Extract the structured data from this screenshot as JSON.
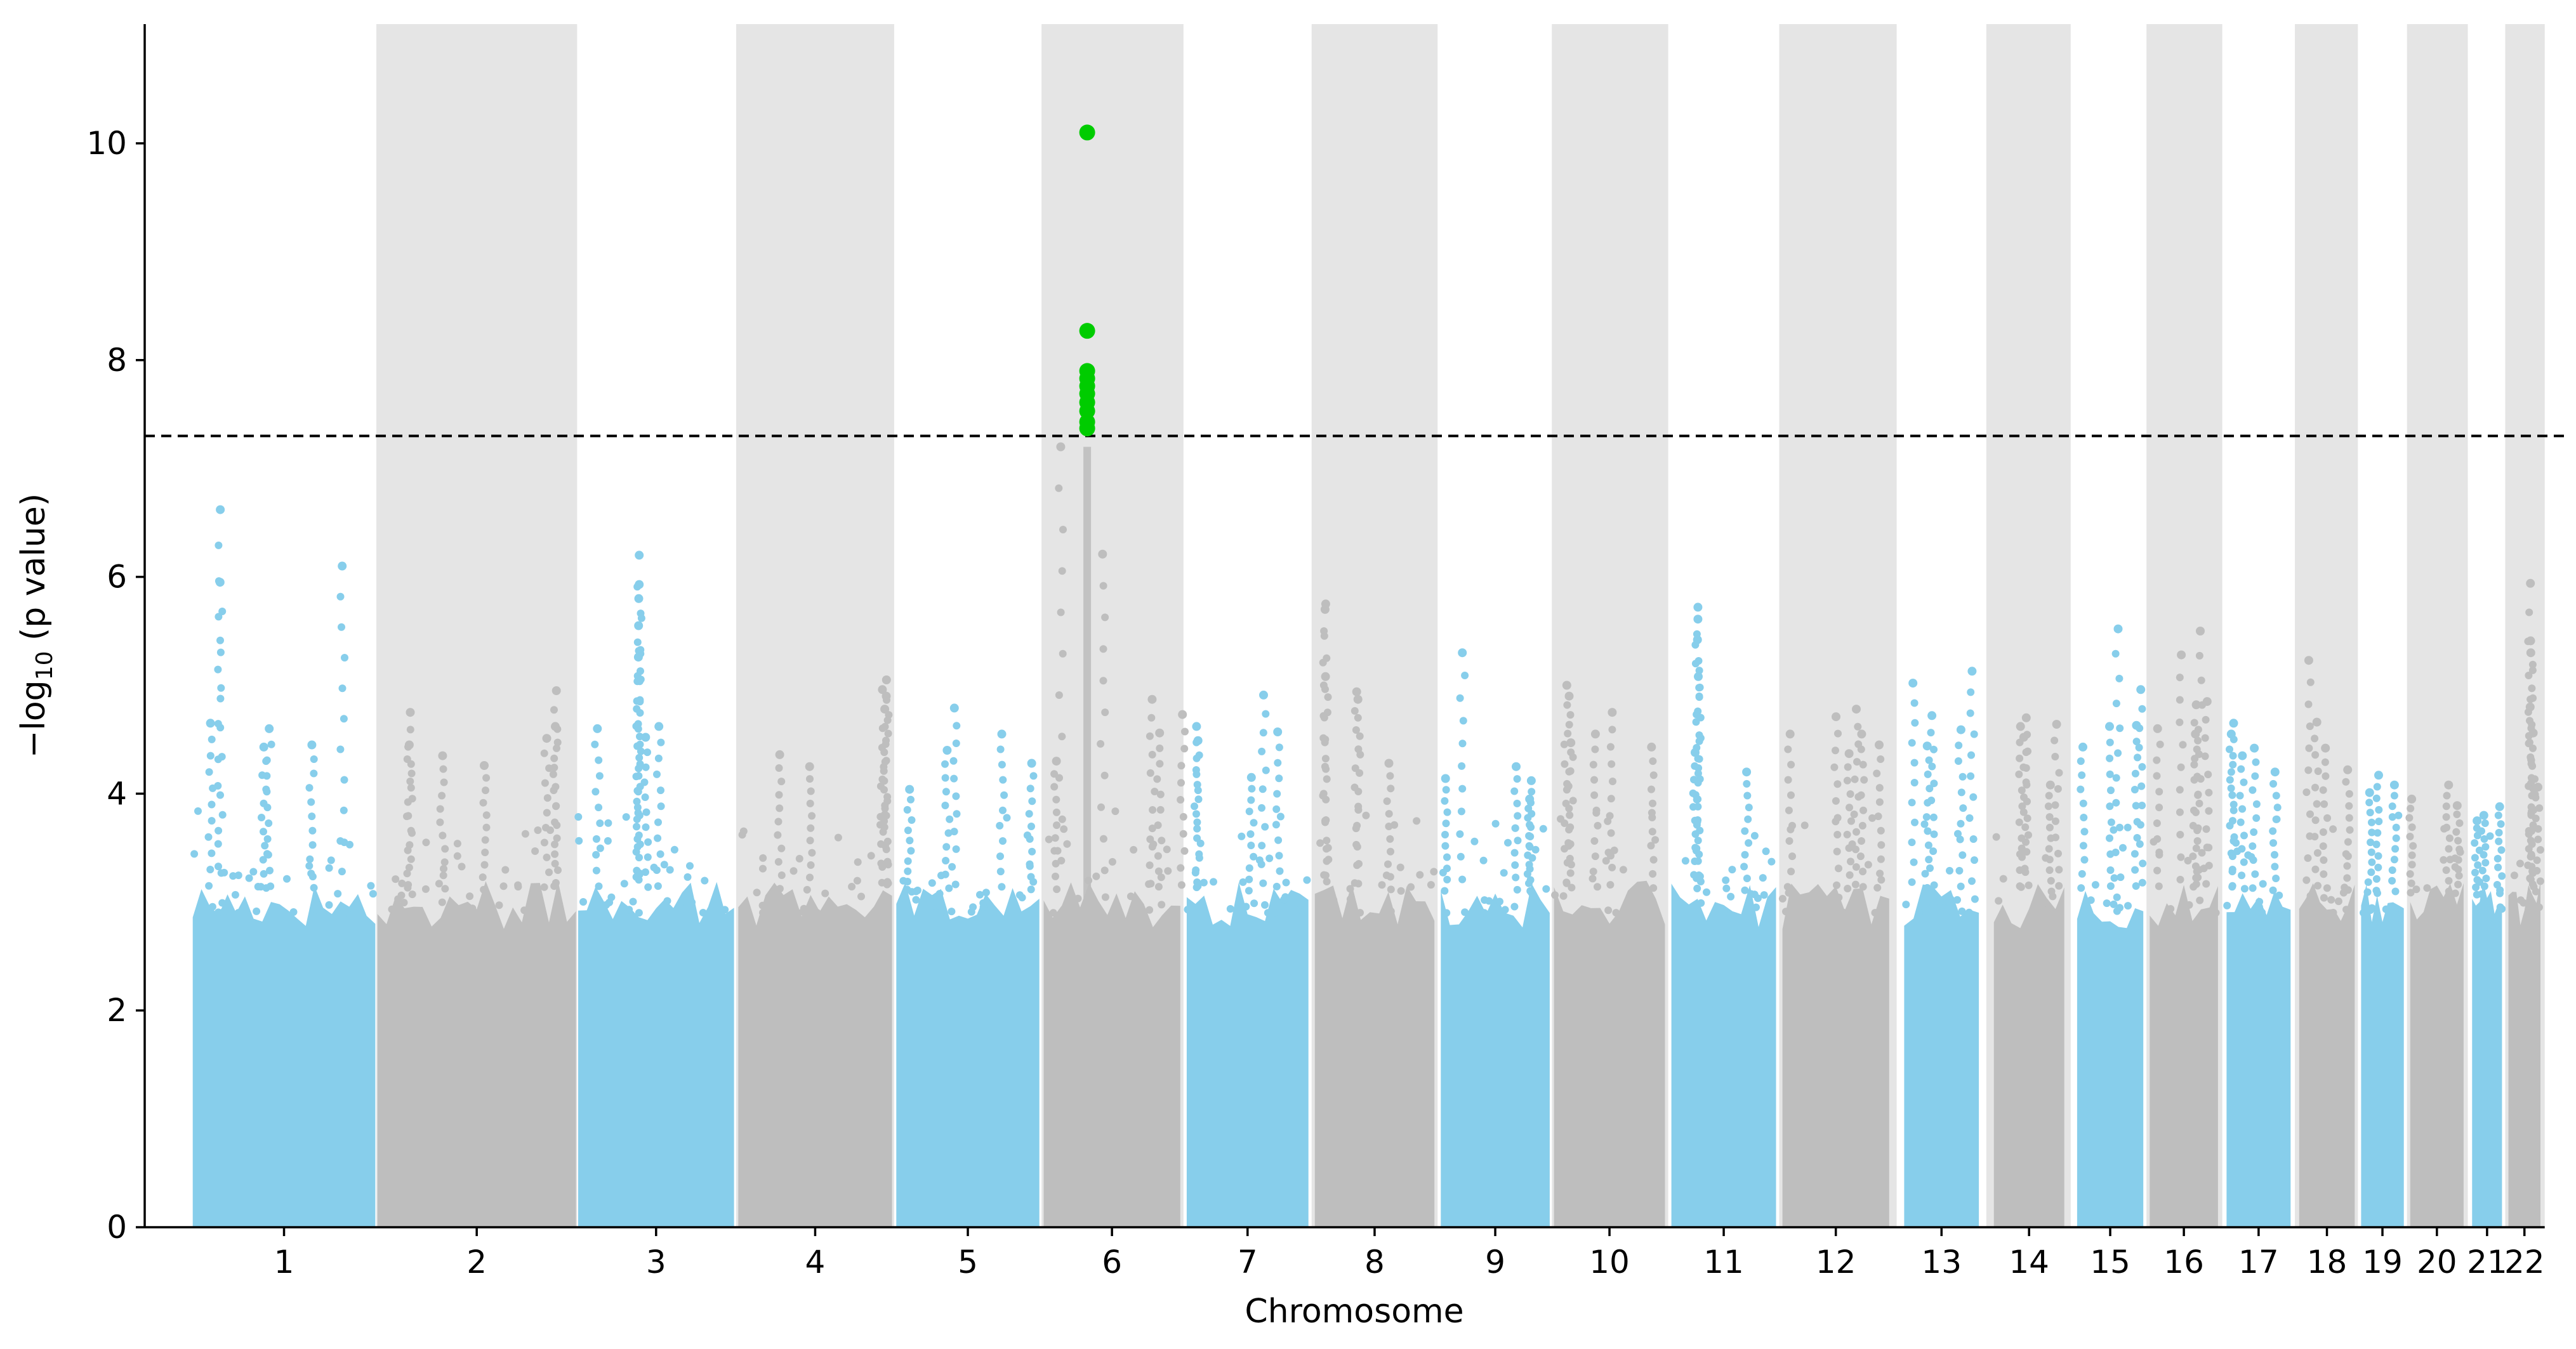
{
  "chart_data": {
    "type": "scatter",
    "subtype": "manhattan",
    "title": "",
    "xlabel": "Chromosome",
    "ylabel_prefix": "−log",
    "ylabel_sub": "10",
    "ylabel_suffix": " (p value)",
    "ylim": [
      0,
      11.1
    ],
    "yticks": [
      0,
      2,
      4,
      6,
      8,
      10
    ],
    "significance_threshold": 7.3,
    "threshold_style": "dashed black line",
    "colors": {
      "odd": "#87ceeb",
      "even": "#bebebe",
      "significant": "#00cc00",
      "band": "#e5e5e5",
      "threshold": "#000000"
    },
    "chromosomes": [
      {
        "label": "1",
        "start": 0.5,
        "end": 86.0,
        "max": 6.62,
        "peaks": [
          [
            13.4,
            6.62
          ],
          [
            13.3,
            5.95
          ],
          [
            70.5,
            6.1
          ],
          [
            8.8,
            4.65
          ],
          [
            36.3,
            4.6
          ],
          [
            56.3,
            4.45
          ],
          [
            33.8,
            4.43
          ]
        ]
      },
      {
        "label": "2",
        "start": 87.0,
        "end": 180.0,
        "max": 4.95,
        "peaks": [
          [
            170.8,
            4.95
          ],
          [
            102.4,
            4.75
          ],
          [
            170.3,
            4.62
          ],
          [
            166.3,
            4.51
          ],
          [
            101.9,
            4.45
          ],
          [
            117.5,
            4.35
          ],
          [
            137.0,
            4.26
          ]
        ]
      },
      {
        "label": "3",
        "start": 181.0,
        "end": 254.0,
        "max": 6.2,
        "peaks": [
          [
            209.6,
            6.2
          ],
          [
            209.6,
            5.93
          ],
          [
            209.4,
            5.8
          ],
          [
            209.3,
            5.55
          ],
          [
            209.2,
            5.26
          ],
          [
            190.0,
            4.6
          ],
          [
            218.8,
            4.62
          ],
          [
            212.6,
            4.52
          ]
        ]
      },
      {
        "label": "4",
        "start": 256.0,
        "end": 328.0,
        "max": 5.05,
        "peaks": [
          [
            325.4,
            5.05
          ],
          [
            323.5,
            4.96
          ],
          [
            325.3,
            4.9
          ],
          [
            324.6,
            4.78
          ],
          [
            275.4,
            4.36
          ],
          [
            289.4,
            4.25
          ]
        ]
      },
      {
        "label": "5",
        "start": 330.0,
        "end": 397.0,
        "max": 4.79,
        "peaks": [
          [
            357.2,
            4.79
          ],
          [
            379.4,
            4.55
          ],
          [
            353.8,
            4.4
          ],
          [
            393.4,
            4.28
          ],
          [
            336.2,
            4.04
          ]
        ]
      },
      {
        "label": "6",
        "start": 399.0,
        "end": 463.0,
        "max": 10.1,
        "peaks": [
          [
            407.0,
            7.2
          ],
          [
            426.6,
            6.21
          ],
          [
            449.8,
            4.87
          ],
          [
            464.0,
            4.73
          ],
          [
            453.3,
            4.56
          ],
          [
            405.0,
            4.3
          ]
        ]
      },
      {
        "label": "7",
        "start": 466.0,
        "end": 523.0,
        "max": 4.91,
        "peaks": [
          [
            502.0,
            4.91
          ],
          [
            470.6,
            4.62
          ],
          [
            508.6,
            4.57
          ],
          [
            471.3,
            4.49
          ],
          [
            496.3,
            4.15
          ]
        ]
      },
      {
        "label": "8",
        "start": 526.0,
        "end": 582.0,
        "max": 5.75,
        "peaks": [
          [
            531.1,
            5.75
          ],
          [
            530.8,
            5.7
          ],
          [
            531.0,
            5.08
          ],
          [
            545.6,
            4.94
          ],
          [
            546.2,
            4.87
          ],
          [
            560.7,
            4.28
          ]
        ]
      },
      {
        "label": "9",
        "start": 585.0,
        "end": 636.0,
        "max": 5.3,
        "peaks": [
          [
            595.1,
            5.3
          ],
          [
            620.3,
            4.25
          ],
          [
            627.4,
            4.12
          ],
          [
            587.2,
            4.14
          ],
          [
            626.6,
            3.95
          ]
        ]
      },
      {
        "label": "10",
        "start": 638.0,
        "end": 690.0,
        "max": 5.0,
        "peaks": [
          [
            644.0,
            5.0
          ],
          [
            645.1,
            4.9
          ],
          [
            665.3,
            4.75
          ],
          [
            657.4,
            4.55
          ],
          [
            645.9,
            4.47
          ],
          [
            683.7,
            4.43
          ]
        ]
      },
      {
        "label": "11",
        "start": 693.0,
        "end": 742.0,
        "max": 5.72,
        "peaks": [
          [
            705.4,
            5.72
          ],
          [
            705.4,
            5.61
          ],
          [
            705.2,
            5.42
          ],
          [
            705.6,
            5.08
          ],
          [
            704.1,
            4.38
          ],
          [
            728.2,
            4.2
          ]
        ]
      },
      {
        "label": "12",
        "start": 745.0,
        "end": 795.0,
        "max": 4.78,
        "peaks": [
          [
            779.6,
            4.78
          ],
          [
            770.1,
            4.71
          ],
          [
            782.1,
            4.55
          ],
          [
            748.6,
            4.55
          ],
          [
            776.2,
            4.37
          ],
          [
            790.3,
            4.45
          ]
        ]
      },
      {
        "label": "13",
        "start": 802.0,
        "end": 837.0,
        "max": 5.13,
        "peaks": [
          [
            806.1,
            5.02
          ],
          [
            833.8,
            5.13
          ],
          [
            815.0,
            4.72
          ],
          [
            828.6,
            4.59
          ],
          [
            812.8,
            4.44
          ]
        ]
      },
      {
        "label": "14",
        "start": 844.0,
        "end": 877.0,
        "max": 4.7,
        "peaks": [
          [
            859.2,
            4.7
          ],
          [
            856.5,
            4.62
          ],
          [
            873.4,
            4.64
          ],
          [
            858.0,
            4.52
          ],
          [
            870.5,
            4.08
          ]
        ]
      },
      {
        "label": "15",
        "start": 883.0,
        "end": 914.0,
        "max": 5.52,
        "peaks": [
          [
            902.2,
            5.52
          ],
          [
            912.8,
            4.96
          ],
          [
            898.2,
            4.62
          ],
          [
            885.7,
            4.43
          ],
          [
            910.8,
            4.63
          ]
        ]
      },
      {
        "label": "16",
        "start": 917.0,
        "end": 949.0,
        "max": 5.5,
        "peaks": [
          [
            940.7,
            5.5
          ],
          [
            931.8,
            5.28
          ],
          [
            938.8,
            4.82
          ],
          [
            943.9,
            4.85
          ],
          [
            938.4,
            4.55
          ],
          [
            920.7,
            4.6
          ]
        ]
      },
      {
        "label": "17",
        "start": 953.0,
        "end": 983.0,
        "max": 4.65,
        "peaks": [
          [
            956.3,
            4.65
          ],
          [
            955.2,
            4.55
          ],
          [
            966.0,
            4.42
          ],
          [
            975.7,
            4.2
          ],
          [
            960.4,
            4.35
          ]
        ]
      },
      {
        "label": "18",
        "start": 987.0,
        "end": 1013.0,
        "max": 5.23,
        "peaks": [
          [
            991.5,
            5.23
          ],
          [
            995.3,
            4.66
          ],
          [
            999.3,
            4.42
          ],
          [
            1009.7,
            4.22
          ]
        ]
      },
      {
        "label": "19",
        "start": 1016.0,
        "end": 1036.0,
        "max": 4.17,
        "peaks": [
          [
            1024.2,
            4.17
          ],
          [
            1020.0,
            4.01
          ],
          [
            1031.6,
            4.08
          ]
        ]
      },
      {
        "label": "20",
        "start": 1039.0,
        "end": 1064.0,
        "max": 4.08,
        "peaks": [
          [
            1057.0,
            4.08
          ],
          [
            1039.7,
            3.95
          ],
          [
            1061.0,
            3.89
          ]
        ]
      },
      {
        "label": "21",
        "start": 1068.0,
        "end": 1082.0,
        "max": 3.9,
        "peaks": [
          [
            1073.5,
            3.8
          ],
          [
            1080.9,
            3.88
          ],
          [
            1070.3,
            3.75
          ]
        ]
      },
      {
        "label": "22",
        "start": 1085.0,
        "end": 1100.0,
        "max": 5.94,
        "peaks": [
          [
            1095.3,
            5.94
          ],
          [
            1095.4,
            5.41
          ],
          [
            1095.5,
            5.3
          ],
          [
            1095.2,
            4.8
          ],
          [
            1096.6,
            4.56
          ],
          [
            1098.8,
            4.06
          ]
        ]
      }
    ],
    "significant_points": [
      {
        "chrom": "6",
        "x": 419.4,
        "y": 10.1
      },
      {
        "chrom": "6",
        "x": 419.4,
        "y": 8.27
      },
      {
        "chrom": "6",
        "x": 419.4,
        "y": 7.9
      },
      {
        "chrom": "6",
        "x": 419.4,
        "y": 7.83
      },
      {
        "chrom": "6",
        "x": 419.4,
        "y": 7.76
      },
      {
        "chrom": "6",
        "x": 419.4,
        "y": 7.69
      },
      {
        "chrom": "6",
        "x": 419.4,
        "y": 7.61
      },
      {
        "chrom": "6",
        "x": 419.4,
        "y": 7.53
      },
      {
        "chrom": "6",
        "x": 419.4,
        "y": 7.43
      },
      {
        "chrom": "6",
        "x": 419.4,
        "y": 7.37
      }
    ]
  }
}
